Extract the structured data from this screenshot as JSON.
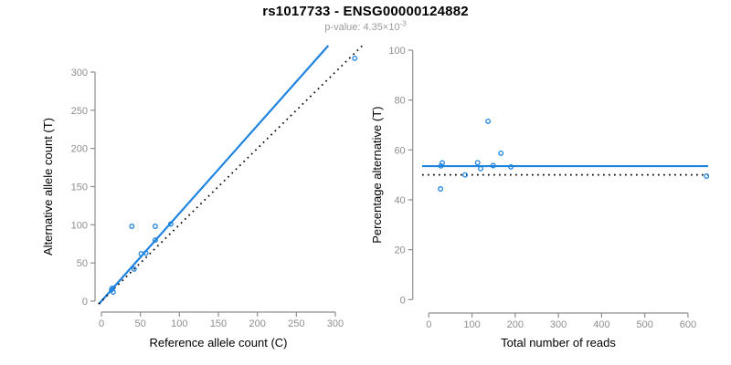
{
  "title": "rs1017733 - ENSG00000124882",
  "subtitle": {
    "label": "p-value: ",
    "value": "4.35×10",
    "exponent": "-3"
  },
  "colors": {
    "blue": "#1f83e0",
    "black": "#000000",
    "axis_line": "#8e8e8e",
    "tick_label": "#8e8e8e",
    "axis_title": "#000000",
    "subtitle_gray": "#9a9a9a",
    "background": "#ffffff"
  },
  "chart_data": [
    {
      "type": "scatter",
      "name": "allele-counts",
      "xlabel": "Reference allele count (C)",
      "ylabel": "Alternative allele count (T)",
      "xticks": [
        0,
        50,
        100,
        150,
        200,
        250,
        300
      ],
      "yticks": [
        0,
        50,
        100,
        150,
        200,
        250,
        300
      ],
      "xlim": [
        0,
        340
      ],
      "ylim": [
        0,
        335
      ],
      "grid": false,
      "legend": "none",
      "marker": "open-circle",
      "points": [
        [
          13,
          15
        ],
        [
          14,
          17
        ],
        [
          15,
          12
        ],
        [
          42,
          42
        ],
        [
          51,
          62
        ],
        [
          57,
          63
        ],
        [
          39,
          98
        ],
        [
          69,
          80
        ],
        [
          69,
          98
        ],
        [
          89,
          101
        ],
        [
          325,
          318
        ]
      ],
      "lines": [
        {
          "name": "fitted-allelic-ratio-line",
          "style": "solid",
          "color_key": "blue",
          "slope": 1.15,
          "intercept": 0
        },
        {
          "name": "identity-line",
          "style": "dotted",
          "color_key": "black",
          "slope": 1,
          "intercept": 0
        }
      ]
    },
    {
      "type": "scatter",
      "name": "percentage-alternative",
      "xlabel": "Total number of reads",
      "ylabel": "Percentage alternative (T)",
      "xticks": [
        0,
        100,
        200,
        300,
        400,
        500,
        600
      ],
      "yticks": [
        0,
        20,
        40,
        60,
        80,
        100
      ],
      "xlim": [
        0,
        670
      ],
      "ylim": [
        0,
        100
      ],
      "grid": false,
      "legend": "none",
      "marker": "open-circle",
      "points": [
        [
          28,
          53.6
        ],
        [
          31,
          54.8
        ],
        [
          27,
          44.4
        ],
        [
          84,
          50.0
        ],
        [
          113,
          54.9
        ],
        [
          120,
          52.5
        ],
        [
          137,
          71.5
        ],
        [
          149,
          53.7
        ],
        [
          167,
          58.7
        ],
        [
          190,
          53.2
        ],
        [
          643,
          49.5
        ]
      ],
      "lines": [
        {
          "name": "fitted-percentage-line",
          "style": "solid",
          "color_key": "blue",
          "slope": 0,
          "intercept": 53.5
        },
        {
          "name": "null-50-percent-line",
          "style": "dotted",
          "color_key": "black",
          "slope": 0,
          "intercept": 50
        }
      ]
    }
  ]
}
